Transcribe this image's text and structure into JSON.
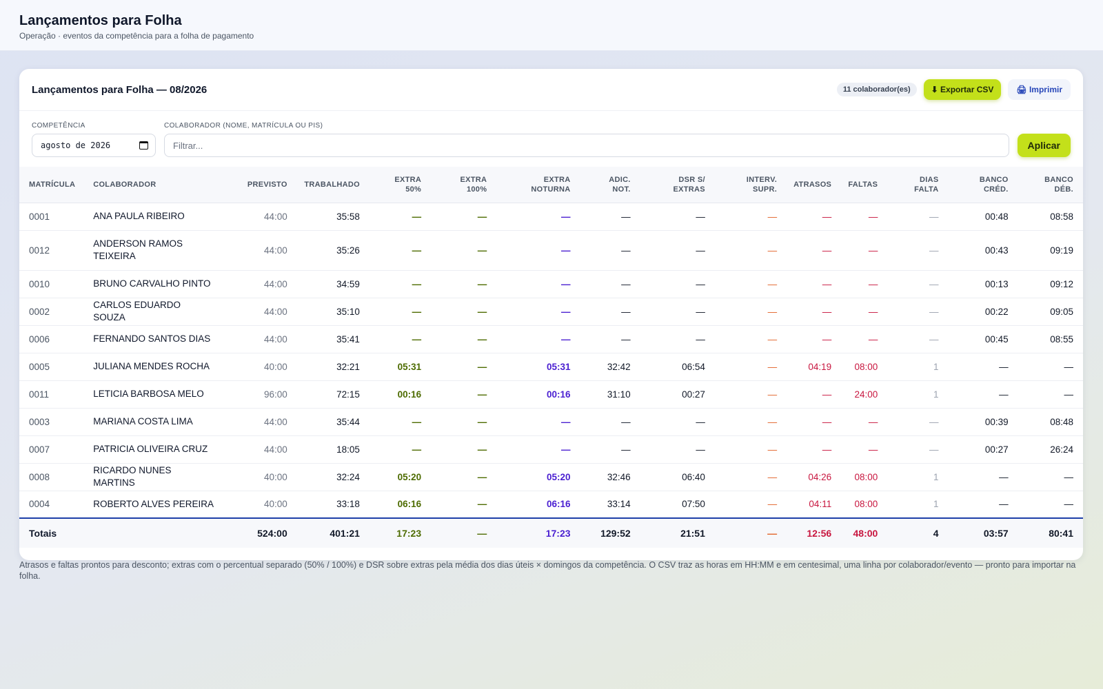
{
  "header": {
    "title": "Lançamentos para Folha",
    "subtitle": "Operação · eventos da competência para a folha de pagamento"
  },
  "card": {
    "title": "Lançamentos para Folha — 08/2026",
    "count_badge": "11 colaborador(es)",
    "export_label": "⬇ Exportar CSV",
    "print_label": "🖨 Imprimir"
  },
  "filters": {
    "competencia_label": "COMPETÊNCIA",
    "competencia_value": "agosto de 2026",
    "colaborador_label": "COLABORADOR (NOME, MATRÍCULA OU PIS)",
    "colaborador_placeholder": "Filtrar...",
    "apply_label": "Aplicar"
  },
  "table": {
    "columns": [
      "MATRÍCULA",
      "COLABORADOR",
      "PREVISTO",
      "TRABALHADO",
      "EXTRA 50%",
      "EXTRA 100%",
      "EXTRA NOTURNA",
      "ADIC. NOT.",
      "DSR S/ EXTRAS",
      "INTERV. SUPR.",
      "ATRASOS",
      "FALTAS",
      "DIAS FALTA",
      "BANCO CRÉD.",
      "BANCO DÉB."
    ],
    "rows": [
      {
        "mat": "0001",
        "name": "ANA PAULA RIBEIRO",
        "prev": "44:00",
        "trab": "35:58",
        "e50": "—",
        "e100": "—",
        "enot": "—",
        "adic": "—",
        "dsr": "—",
        "interv": "—",
        "atr": "—",
        "falt": "—",
        "dias": "—",
        "cred": "00:48",
        "deb": "08:58"
      },
      {
        "mat": "0012",
        "name": "ANDERSON RAMOS TEIXEIRA",
        "prev": "44:00",
        "trab": "35:26",
        "e50": "—",
        "e100": "—",
        "enot": "—",
        "adic": "—",
        "dsr": "—",
        "interv": "—",
        "atr": "—",
        "falt": "—",
        "dias": "—",
        "cred": "00:43",
        "deb": "09:19"
      },
      {
        "mat": "0010",
        "name": "BRUNO CARVALHO PINTO",
        "prev": "44:00",
        "trab": "34:59",
        "e50": "—",
        "e100": "—",
        "enot": "—",
        "adic": "—",
        "dsr": "—",
        "interv": "—",
        "atr": "—",
        "falt": "—",
        "dias": "—",
        "cred": "00:13",
        "deb": "09:12"
      },
      {
        "mat": "0002",
        "name": "CARLOS EDUARDO SOUZA",
        "prev": "44:00",
        "trab": "35:10",
        "e50": "—",
        "e100": "—",
        "enot": "—",
        "adic": "—",
        "dsr": "—",
        "interv": "—",
        "atr": "—",
        "falt": "—",
        "dias": "—",
        "cred": "00:22",
        "deb": "09:05"
      },
      {
        "mat": "0006",
        "name": "FERNANDO SANTOS DIAS",
        "prev": "44:00",
        "trab": "35:41",
        "e50": "—",
        "e100": "—",
        "enot": "—",
        "adic": "—",
        "dsr": "—",
        "interv": "—",
        "atr": "—",
        "falt": "—",
        "dias": "—",
        "cred": "00:45",
        "deb": "08:55"
      },
      {
        "mat": "0005",
        "name": "JULIANA MENDES ROCHA",
        "prev": "40:00",
        "trab": "32:21",
        "e50": "05:31",
        "e100": "—",
        "enot": "05:31",
        "adic": "32:42",
        "dsr": "06:54",
        "interv": "—",
        "atr": "04:19",
        "falt": "08:00",
        "dias": "1",
        "cred": "—",
        "deb": "—"
      },
      {
        "mat": "0011",
        "name": "LETICIA BARBOSA MELO",
        "prev": "96:00",
        "trab": "72:15",
        "e50": "00:16",
        "e100": "—",
        "enot": "00:16",
        "adic": "31:10",
        "dsr": "00:27",
        "interv": "—",
        "atr": "—",
        "falt": "24:00",
        "dias": "1",
        "cred": "—",
        "deb": "—"
      },
      {
        "mat": "0003",
        "name": "MARIANA COSTA LIMA",
        "prev": "44:00",
        "trab": "35:44",
        "e50": "—",
        "e100": "—",
        "enot": "—",
        "adic": "—",
        "dsr": "—",
        "interv": "—",
        "atr": "—",
        "falt": "—",
        "dias": "—",
        "cred": "00:39",
        "deb": "08:48"
      },
      {
        "mat": "0007",
        "name": "PATRICIA OLIVEIRA CRUZ",
        "prev": "44:00",
        "trab": "18:05",
        "e50": "—",
        "e100": "—",
        "enot": "—",
        "adic": "—",
        "dsr": "—",
        "interv": "—",
        "atr": "—",
        "falt": "—",
        "dias": "—",
        "cred": "00:27",
        "deb": "26:24"
      },
      {
        "mat": "0008",
        "name": "RICARDO NUNES MARTINS",
        "prev": "40:00",
        "trab": "32:24",
        "e50": "05:20",
        "e100": "—",
        "enot": "05:20",
        "adic": "32:46",
        "dsr": "06:40",
        "interv": "—",
        "atr": "04:26",
        "falt": "08:00",
        "dias": "1",
        "cred": "—",
        "deb": "—"
      },
      {
        "mat": "0004",
        "name": "ROBERTO ALVES PEREIRA",
        "prev": "40:00",
        "trab": "33:18",
        "e50": "06:16",
        "e100": "—",
        "enot": "06:16",
        "adic": "33:14",
        "dsr": "07:50",
        "interv": "—",
        "atr": "04:11",
        "falt": "08:00",
        "dias": "1",
        "cred": "—",
        "deb": "—"
      }
    ],
    "totals": {
      "label": "Totais",
      "prev": "524:00",
      "trab": "401:21",
      "e50": "17:23",
      "e100": "—",
      "enot": "17:23",
      "adic": "129:52",
      "dsr": "21:51",
      "interv": "—",
      "atr": "12:56",
      "falt": "48:00",
      "dias": "4",
      "cred": "03:57",
      "deb": "80:41"
    }
  },
  "footnote": "Atrasos e faltas prontos para desconto; extras com o percentual separado (50% / 100%) e DSR sobre extras pela média dos dias úteis × domingos da competência. O CSV traz as horas em HH:MM e em centesimal, uma linha por colaborador/evento — pronto para importar na folha.",
  "colors": {
    "accent": "#c3e01a",
    "olive": "#4d6b00",
    "violet": "#4a1fd1",
    "crimson": "#c8163f",
    "orange": "#e2642a",
    "totals_border": "#1d3fa8"
  }
}
